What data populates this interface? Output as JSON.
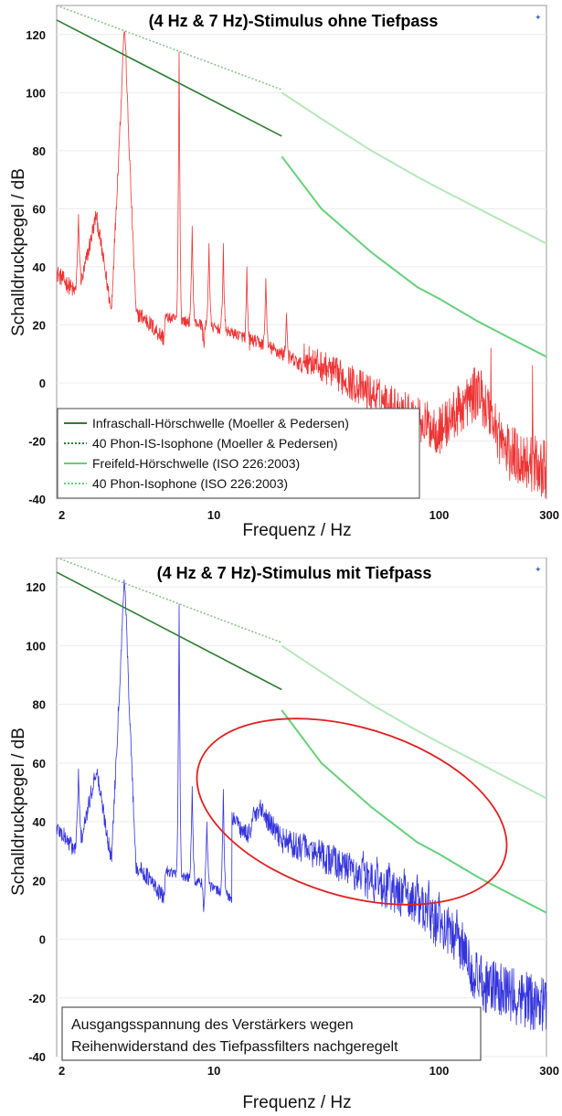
{
  "chart_data": [
    {
      "type": "line",
      "title": "(4 Hz & 7 Hz)-Stimulus ohne Tiefpass",
      "xlabel": "Frequenz / Hz",
      "ylabel": "Schalldruckpegel / dB",
      "x_scale": "log",
      "xlim": [
        2,
        300
      ],
      "ylim": [
        -40,
        130
      ],
      "x_ticks": [
        2,
        10,
        100,
        300
      ],
      "y_ticks": [
        -40,
        -20,
        0,
        20,
        40,
        60,
        80,
        100,
        120
      ],
      "legend_position": "bottom-left",
      "legend": [
        "Infraschall-Hörschwelle (Moeller & Pedersen)",
        "40 Phon-IS-Isophone (Moeller & Pedersen)",
        "Freifeld-Hörschwelle (ISO 226:2003)",
        "40 Phon-Isophone (ISO 226:2003)"
      ],
      "colors": {
        "spectrum": "#ee3333",
        "infraschall_threshold": "#2e7d32",
        "infraschall_isophone": "#8fbf8f",
        "freifeld_threshold": "#66d07a",
        "freifeld_isophone": "#b4e8b8"
      },
      "series": [
        {
          "x": [
            2,
            20
          ],
          "y": [
            125,
            85
          ]
        },
        {
          "x": [
            2,
            20
          ],
          "y": [
            130,
            101
          ]
        },
        {
          "x": [
            20,
            30,
            50,
            80,
            100,
            150,
            200,
            300
          ],
          "y": [
            78,
            60,
            45,
            33,
            29,
            21,
            16,
            9
          ]
        },
        {
          "x": [
            20,
            30,
            50,
            80,
            100,
            150,
            200,
            300
          ],
          "y": [
            100,
            91,
            80,
            71,
            67,
            60,
            55,
            48
          ]
        },
        {
          "x": [
            2,
            2.5,
            3,
            3.5,
            4,
            4.5,
            5,
            6,
            7,
            7.5,
            8,
            9,
            10,
            11,
            12,
            14,
            16,
            20,
            30,
            50,
            80,
            100,
            150,
            200,
            300
          ],
          "y": [
            38,
            30,
            58,
            25,
            121,
            25,
            22,
            16,
            114,
            20,
            54,
            15,
            50,
            12,
            48,
            10,
            40,
            15,
            10,
            2,
            -5,
            -8,
            8,
            -12,
            -16
          ]
        }
      ]
    },
    {
      "type": "line",
      "title": "(4 Hz & 7 Hz)-Stimulus mit Tiefpass",
      "xlabel": "Frequenz / Hz",
      "ylabel": "Schalldruckpegel / dB",
      "x_scale": "log",
      "xlim": [
        2,
        300
      ],
      "ylim": [
        -40,
        130
      ],
      "x_ticks": [
        2,
        10,
        100,
        300
      ],
      "y_ticks": [
        -40,
        -20,
        0,
        20,
        40,
        60,
        80,
        100,
        120
      ],
      "annotation": "Ausgangsspannung des Verstärkers wegen Reihenwiderstand des Tiefpassfilters nachgeregelt",
      "annotation_lines": [
        "Ausgangsspannung des Verstärkers wegen",
        "Reihenwiderstand des Tiefpassfilters nachgeregelt"
      ],
      "highlight": "red ellipse around 8–150 Hz, -20–45 dB",
      "colors": {
        "spectrum": "#3333dd",
        "highlight": "#e02020",
        "infraschall_threshold": "#2e7d32",
        "infraschall_isophone": "#8fbf8f",
        "freifeld_threshold": "#66d07a",
        "freifeld_isophone": "#b4e8b8"
      },
      "series": [
        {
          "x": [
            2,
            20
          ],
          "y": [
            125,
            85
          ]
        },
        {
          "x": [
            2,
            20
          ],
          "y": [
            130,
            101
          ]
        },
        {
          "x": [
            20,
            30,
            50,
            80,
            100,
            150,
            200,
            300
          ],
          "y": [
            78,
            60,
            45,
            33,
            29,
            21,
            16,
            9
          ]
        },
        {
          "x": [
            20,
            30,
            50,
            80,
            100,
            150,
            200,
            300
          ],
          "y": [
            100,
            91,
            80,
            71,
            67,
            60,
            55,
            48
          ]
        },
        {
          "x": [
            2,
            2.5,
            3,
            3.5,
            4,
            4.5,
            5,
            6,
            7,
            7.5,
            8,
            9,
            10,
            12,
            14,
            16,
            20,
            30,
            50,
            80,
            100,
            120,
            150,
            200,
            300
          ],
          "y": [
            38,
            29,
            58,
            27,
            121,
            25,
            22,
            14,
            114,
            18,
            52,
            12,
            51,
            42,
            36,
            45,
            35,
            30,
            22,
            15,
            8,
            5,
            -10,
            -14,
            -16
          ]
        }
      ]
    }
  ]
}
